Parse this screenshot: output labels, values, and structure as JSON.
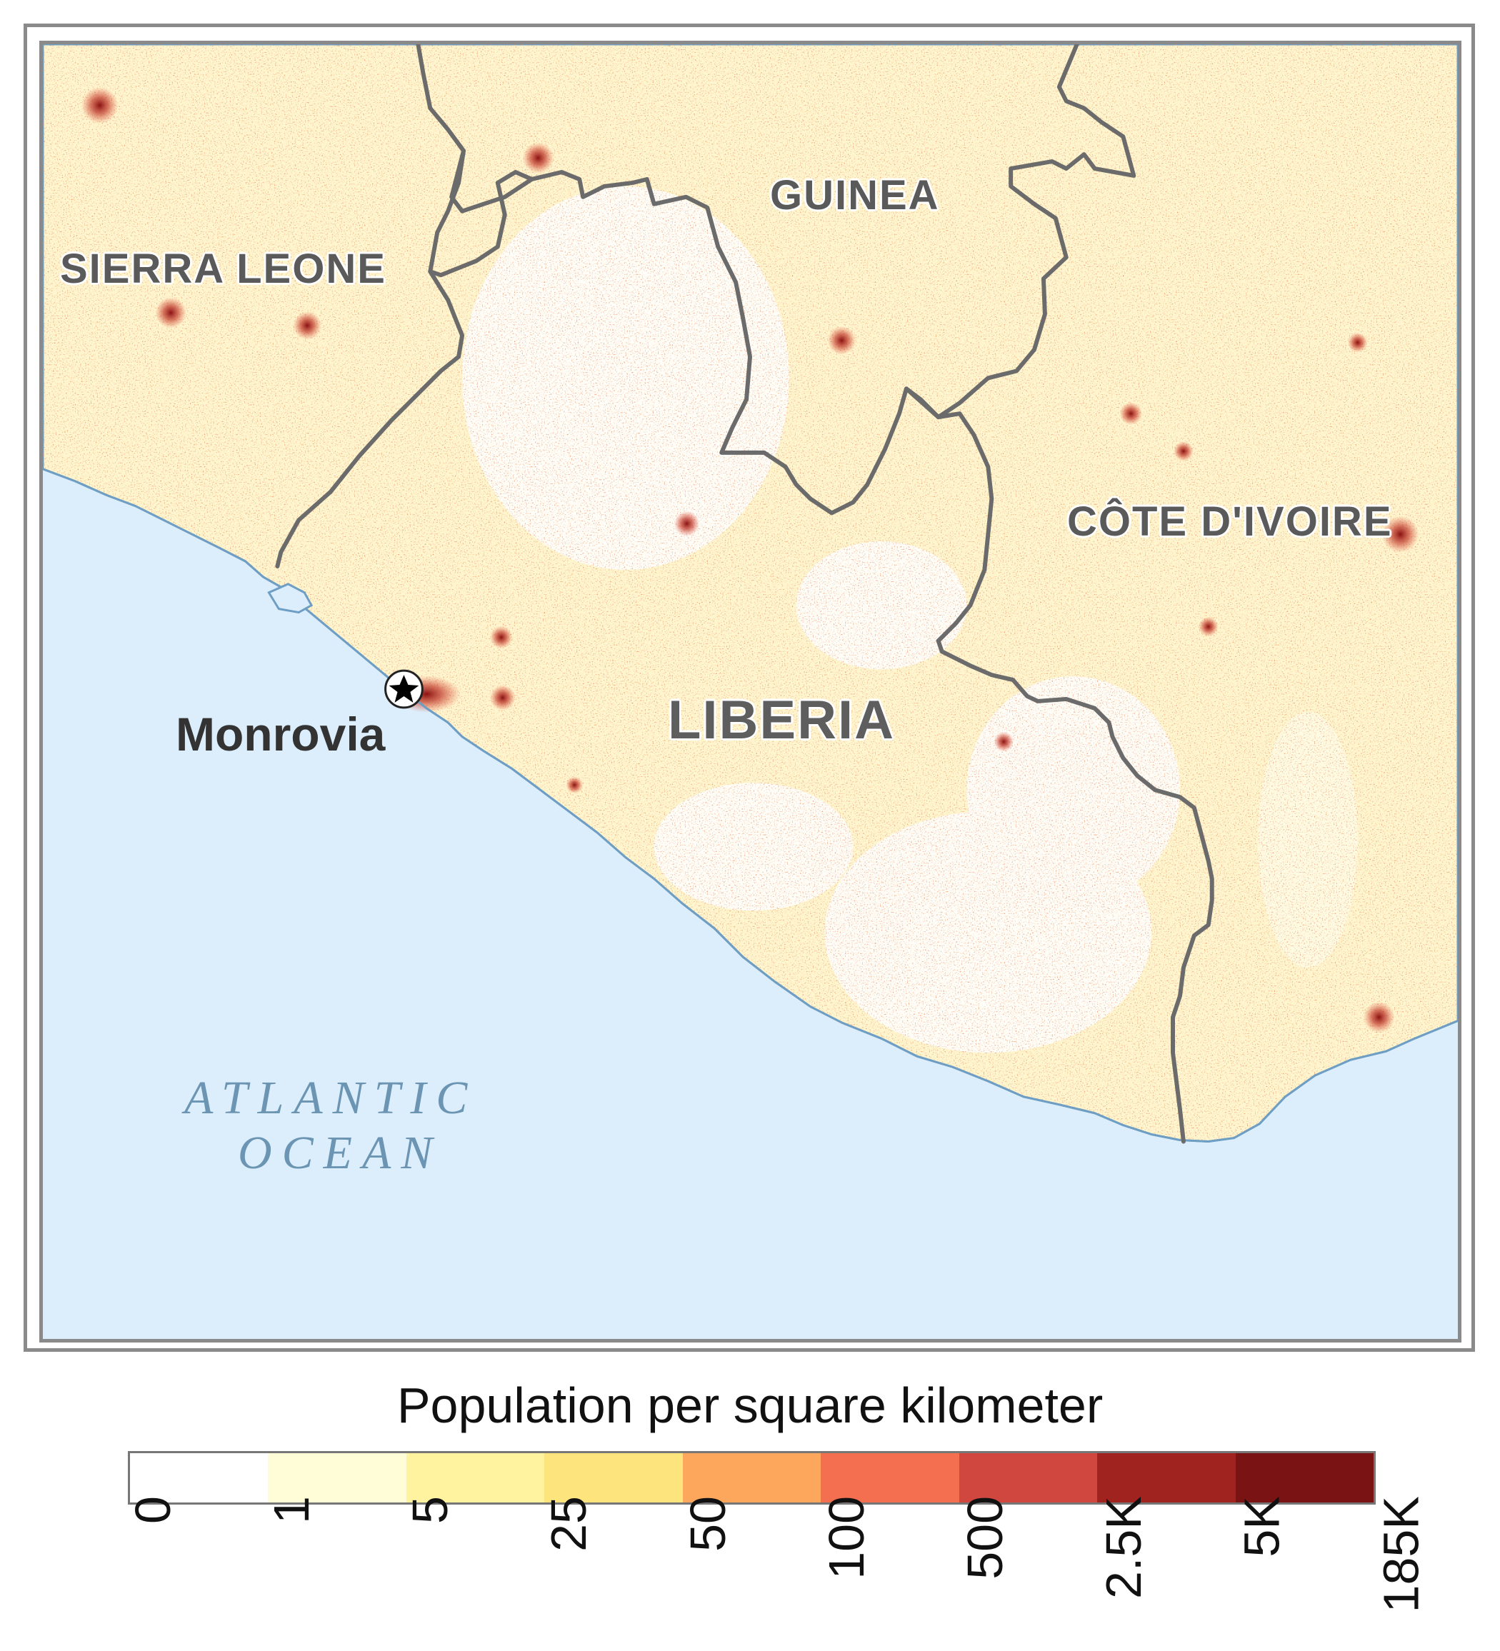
{
  "map": {
    "labels": {
      "sierra_leone": "SIERRA LEONE",
      "guinea": "GUINEA",
      "cote_divoire": "CÔTE D'IVOIRE",
      "liberia": "LIBERIA",
      "monrovia": "Monrovia",
      "ocean_line1": "ATLANTIC",
      "ocean_line2": "OCEAN"
    },
    "colors": {
      "ocean": "#dceefb",
      "coastline": "#6e9ec4",
      "border": "#6b6b6b",
      "land_base": "#fff6cf"
    }
  },
  "legend": {
    "title": "Population per square kilometer",
    "ticks": [
      "0",
      "1",
      "5",
      "25",
      "50",
      "100",
      "500",
      "2.5K",
      "5K",
      "185K"
    ],
    "colors": [
      "#ffffff",
      "#fffcd8",
      "#fff3a0",
      "#fee47c",
      "#fda75c",
      "#f46e50",
      "#d04740",
      "#a1231f",
      "#7a1313"
    ]
  }
}
